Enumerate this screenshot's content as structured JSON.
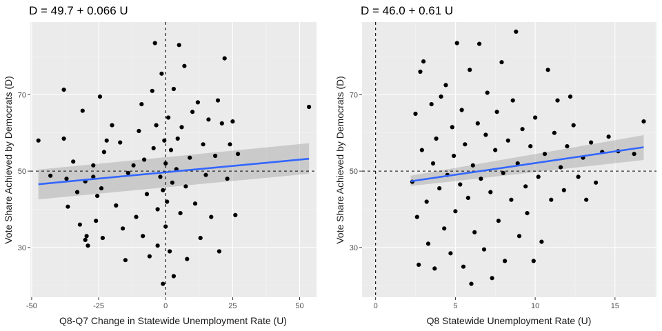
{
  "chart_data": [
    {
      "type": "scatter",
      "title": "D = 49.7 + 0.066 U",
      "xlabel": "Q8-Q7 Change in Statewide Unemployment Rate (U)",
      "ylabel": "Vote Share Achieved by Democrats (D)",
      "xlim": [
        -50.5,
        56.3
      ],
      "ylim": [
        17,
        89
      ],
      "x_ticks": [
        -50,
        -25,
        0,
        25,
        50
      ],
      "x_tick_labels": [
        "-50",
        "-25",
        "0",
        "25",
        "50"
      ],
      "y_ticks": [
        30,
        50,
        70
      ],
      "y_tick_labels": [
        "30",
        "50",
        "70"
      ],
      "grid": true,
      "legend": "none",
      "reference_lines": {
        "vertical_x": 0,
        "horizontal_y": 50
      },
      "fit": {
        "intercept": 49.7,
        "slope": 0.066,
        "x_range": [
          -47.5,
          53.5
        ],
        "band_at_start": [
          42.6,
          50.4
        ],
        "band_at_end": [
          49.3,
          57.3
        ]
      },
      "points": [
        [
          -47.5,
          58
        ],
        [
          -43,
          48.8
        ],
        [
          -38,
          58.5
        ],
        [
          -38,
          71.3
        ],
        [
          -37,
          48
        ],
        [
          -36.5,
          40.7
        ],
        [
          -34.5,
          52.5
        ],
        [
          -33,
          44.5
        ],
        [
          -32,
          36
        ],
        [
          -31,
          65.8
        ],
        [
          -30,
          47.3
        ],
        [
          -30,
          32
        ],
        [
          -29.5,
          33
        ],
        [
          -29,
          30.5
        ],
        [
          -27,
          51.5
        ],
        [
          -27,
          48.5
        ],
        [
          -26,
          37
        ],
        [
          -25.5,
          43.5
        ],
        [
          -24.5,
          69.5
        ],
        [
          -24,
          45.5
        ],
        [
          -23.5,
          32.5
        ],
        [
          -23,
          55
        ],
        [
          -22,
          58
        ],
        [
          -20,
          62
        ],
        [
          -18.5,
          41
        ],
        [
          -17,
          57.5
        ],
        [
          -16,
          35
        ],
        [
          -15,
          26.7
        ],
        [
          -14,
          49.5
        ],
        [
          -12,
          51.5
        ],
        [
          -11,
          38
        ],
        [
          -10,
          60.5
        ],
        [
          -9,
          67.5
        ],
        [
          -8.5,
          33
        ],
        [
          -8,
          53
        ],
        [
          -7,
          44
        ],
        [
          -6,
          27.7
        ],
        [
          -5,
          71
        ],
        [
          -4.5,
          56
        ],
        [
          -4,
          83.5
        ],
        [
          -3.5,
          62
        ],
        [
          -3,
          40
        ],
        [
          -3,
          30.5
        ],
        [
          -2,
          48.5
        ],
        [
          -1.5,
          75.5
        ],
        [
          -1,
          20.5
        ],
        [
          -1,
          45
        ],
        [
          -0.5,
          58
        ],
        [
          0,
          52
        ],
        [
          0,
          35.5
        ],
        [
          0.5,
          42
        ],
        [
          1,
          64
        ],
        [
          1.5,
          29
        ],
        [
          2,
          55.5
        ],
        [
          2.5,
          47
        ],
        [
          3,
          71.5
        ],
        [
          3,
          22.5
        ],
        [
          4,
          50.5
        ],
        [
          4.5,
          58.5
        ],
        [
          5,
          83
        ],
        [
          5.5,
          39
        ],
        [
          6,
          61.5
        ],
        [
          7,
          77.5
        ],
        [
          7.5,
          46
        ],
        [
          8,
          27
        ],
        [
          9,
          53.5
        ],
        [
          10,
          65.5
        ],
        [
          11,
          41.5
        ],
        [
          12,
          68
        ],
        [
          13,
          32.5
        ],
        [
          14,
          57
        ],
        [
          15,
          49
        ],
        [
          16,
          63.5
        ],
        [
          17,
          38
        ],
        [
          18.5,
          54
        ],
        [
          19.5,
          68.5
        ],
        [
          20,
          29
        ],
        [
          21,
          62.5
        ],
        [
          22,
          79.5
        ],
        [
          23,
          48
        ],
        [
          24,
          57
        ],
        [
          25,
          63
        ],
        [
          26,
          38.5
        ],
        [
          27,
          54.5
        ],
        [
          53.5,
          66.8
        ]
      ]
    },
    {
      "type": "scatter",
      "title": "D = 46.0 + 0.61 U",
      "xlabel": "Q8 Statewide Unemployment Rate (U)",
      "ylabel": "Vote Share Achieved by Democrats (D)",
      "xlim": [
        -0.85,
        17.6
      ],
      "ylim": [
        17,
        89
      ],
      "x_ticks": [
        0,
        5,
        10,
        15
      ],
      "x_tick_labels": [
        "0",
        "5",
        "10",
        "15"
      ],
      "y_ticks": [
        30,
        50,
        70
      ],
      "y_tick_labels": [
        "30",
        "50",
        "70"
      ],
      "grid": true,
      "legend": "none",
      "reference_lines": {
        "vertical_x": 0,
        "horizontal_y": 50
      },
      "fit": {
        "intercept": 46.0,
        "slope": 0.61,
        "x_range": [
          2.2,
          16.8
        ],
        "band_at_start": [
          46.1,
          48.8
        ],
        "band_at_end": [
          52.9,
          59.4
        ]
      },
      "points": [
        [
          2.3,
          47.2
        ],
        [
          2.5,
          65
        ],
        [
          2.6,
          38
        ],
        [
          2.7,
          25.5
        ],
        [
          2.8,
          76
        ],
        [
          2.9,
          55.5
        ],
        [
          3,
          78.7
        ],
        [
          3.2,
          42
        ],
        [
          3.3,
          31
        ],
        [
          3.5,
          67.5
        ],
        [
          3.6,
          52
        ],
        [
          3.7,
          24.5
        ],
        [
          3.8,
          58.5
        ],
        [
          4,
          45.5
        ],
        [
          4.1,
          69.5
        ],
        [
          4.3,
          35
        ],
        [
          4.4,
          72.5
        ],
        [
          4.5,
          49
        ],
        [
          4.7,
          28.5
        ],
        [
          4.8,
          61.5
        ],
        [
          4.9,
          54
        ],
        [
          5,
          39.5
        ],
        [
          5.1,
          83.5
        ],
        [
          5.3,
          46.5
        ],
        [
          5.4,
          66
        ],
        [
          5.5,
          25
        ],
        [
          5.6,
          57
        ],
        [
          5.8,
          43
        ],
        [
          5.9,
          76.5
        ],
        [
          6,
          20.5
        ],
        [
          6.1,
          51.5
        ],
        [
          6.2,
          34
        ],
        [
          6.4,
          62.5
        ],
        [
          6.5,
          83.3
        ],
        [
          6.6,
          48
        ],
        [
          6.8,
          29.5
        ],
        [
          6.9,
          59.5
        ],
        [
          7,
          70.5
        ],
        [
          7.2,
          44.5
        ],
        [
          7.3,
          22
        ],
        [
          7.5,
          55.5
        ],
        [
          7.6,
          65.5
        ],
        [
          7.7,
          37
        ],
        [
          7.9,
          78.5
        ],
        [
          8,
          49.5
        ],
        [
          8.1,
          26.5
        ],
        [
          8.3,
          58
        ],
        [
          8.5,
          42.5
        ],
        [
          8.6,
          68.5
        ],
        [
          8.8,
          86.5
        ],
        [
          8.9,
          52
        ],
        [
          9,
          33
        ],
        [
          9.2,
          61
        ],
        [
          9.4,
          46
        ],
        [
          9.5,
          39
        ],
        [
          9.7,
          56.5
        ],
        [
          9.9,
          26.5
        ],
        [
          10,
          64
        ],
        [
          10.2,
          48.5
        ],
        [
          10.4,
          31.5
        ],
        [
          10.6,
          54.5
        ],
        [
          10.8,
          76.5
        ],
        [
          11,
          42.5
        ],
        [
          11.2,
          60
        ],
        [
          11.4,
          68.5
        ],
        [
          11.6,
          51
        ],
        [
          11.8,
          45
        ],
        [
          12,
          56.5
        ],
        [
          12.2,
          69.5
        ],
        [
          12.4,
          62
        ],
        [
          12.7,
          48.5
        ],
        [
          13,
          53.5
        ],
        [
          13.2,
          42.5
        ],
        [
          13.5,
          57.5
        ],
        [
          13.8,
          47
        ],
        [
          14.2,
          55
        ],
        [
          14.6,
          59
        ],
        [
          15.2,
          55.2
        ],
        [
          16.2,
          54.5
        ],
        [
          16.8,
          63
        ]
      ]
    }
  ]
}
